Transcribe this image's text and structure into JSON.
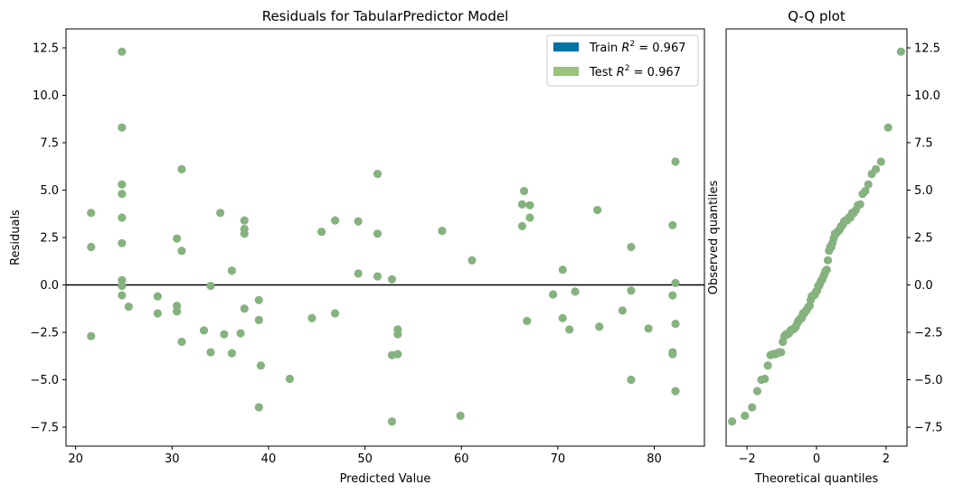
{
  "chart_data": [
    {
      "type": "scatter",
      "title": "Residuals for TabularPredictor Model",
      "xlabel": "Predicted Value",
      "ylabel": "Residuals",
      "xlim": [
        19,
        85.2
      ],
      "ylim": [
        -8.5,
        13.5
      ],
      "xticks": [
        20,
        30,
        40,
        50,
        60,
        70,
        80
      ],
      "yticks": [
        -7.5,
        -5.0,
        -2.5,
        0.0,
        2.5,
        5.0,
        7.5,
        10.0,
        12.5
      ],
      "grid": false,
      "hline": 0,
      "legend": {
        "placement": "top-right",
        "entries": [
          {
            "label_main": "Train ",
            "label_r": "R",
            "label_sup": "2",
            "label_tail": " = 0.967",
            "color": "#0072a6"
          },
          {
            "label_main": "Test ",
            "label_r": "R",
            "label_sup": "2",
            "label_tail": " = 0.967",
            "color": "#9bc27a"
          }
        ]
      },
      "series": [
        {
          "name": "Train",
          "color": "#0072a6",
          "points": []
        },
        {
          "name": "Test",
          "color": "#86b27f",
          "points": [
            [
              21.6,
              3.8
            ],
            [
              21.6,
              2.0
            ],
            [
              21.6,
              -2.7
            ],
            [
              24.8,
              12.3
            ],
            [
              24.8,
              8.3
            ],
            [
              24.8,
              5.3
            ],
            [
              24.8,
              4.8
            ],
            [
              24.8,
              3.55
            ],
            [
              24.8,
              2.2
            ],
            [
              24.8,
              0.25
            ],
            [
              24.8,
              -0.05
            ],
            [
              24.8,
              -0.55
            ],
            [
              25.5,
              -1.15
            ],
            [
              28.5,
              -0.6
            ],
            [
              28.5,
              -1.5
            ],
            [
              30.5,
              2.45
            ],
            [
              30.5,
              -1.1
            ],
            [
              30.5,
              -1.4
            ],
            [
              31.0,
              6.1
            ],
            [
              31.0,
              1.8
            ],
            [
              31.0,
              -3.0
            ],
            [
              33.3,
              -2.4
            ],
            [
              34.0,
              -0.05
            ],
            [
              34.0,
              -3.55
            ],
            [
              35.0,
              3.8
            ],
            [
              35.4,
              -2.6
            ],
            [
              36.2,
              0.75
            ],
            [
              36.2,
              -3.6
            ],
            [
              37.1,
              -2.55
            ],
            [
              37.5,
              3.4
            ],
            [
              37.5,
              2.95
            ],
            [
              37.5,
              2.7
            ],
            [
              37.5,
              -1.25
            ],
            [
              39.0,
              -0.8
            ],
            [
              39.0,
              -1.85
            ],
            [
              39.0,
              -6.45
            ],
            [
              39.2,
              -4.25
            ],
            [
              42.2,
              -4.95
            ],
            [
              44.5,
              -1.75
            ],
            [
              45.5,
              2.8
            ],
            [
              46.9,
              3.4
            ],
            [
              46.9,
              -1.5
            ],
            [
              49.3,
              3.35
            ],
            [
              49.3,
              0.6
            ],
            [
              51.3,
              5.85
            ],
            [
              51.3,
              2.7
            ],
            [
              51.3,
              0.45
            ],
            [
              52.8,
              0.3
            ],
            [
              52.8,
              -3.7
            ],
            [
              52.8,
              -7.2
            ],
            [
              53.4,
              -2.35
            ],
            [
              53.4,
              -2.6
            ],
            [
              53.4,
              -3.65
            ],
            [
              58.0,
              2.85
            ],
            [
              59.9,
              -6.9
            ],
            [
              61.1,
              1.3
            ],
            [
              66.3,
              4.25
            ],
            [
              66.3,
              3.1
            ],
            [
              66.5,
              4.95
            ],
            [
              67.1,
              4.2
            ],
            [
              67.1,
              3.55
            ],
            [
              66.8,
              -1.9
            ],
            [
              69.5,
              -0.5
            ],
            [
              70.5,
              0.8
            ],
            [
              70.5,
              -1.75
            ],
            [
              71.2,
              -2.35
            ],
            [
              71.8,
              -0.35
            ],
            [
              74.1,
              3.95
            ],
            [
              74.3,
              -2.2
            ],
            [
              76.7,
              -1.35
            ],
            [
              77.6,
              2.0
            ],
            [
              77.6,
              -0.3
            ],
            [
              77.6,
              -5.0
            ],
            [
              79.4,
              -2.3
            ],
            [
              81.9,
              3.15
            ],
            [
              81.9,
              -0.55
            ],
            [
              81.9,
              -3.55
            ],
            [
              81.9,
              -3.65
            ],
            [
              82.2,
              6.5
            ],
            [
              82.2,
              0.1
            ],
            [
              82.2,
              -2.05
            ],
            [
              82.2,
              -5.6
            ]
          ]
        }
      ]
    },
    {
      "type": "scatter",
      "title": "Q-Q plot",
      "xlabel": "Theoretical quantiles",
      "ylabel": "Observed quantiles",
      "xlim": [
        -2.6,
        2.6
      ],
      "ylim": [
        -8.5,
        13.5
      ],
      "xticks": [
        -2,
        0,
        2
      ],
      "yticks": [
        -7.5,
        -5.0,
        -2.5,
        0.0,
        2.5,
        5.0,
        7.5,
        10.0,
        12.5
      ],
      "grid": false,
      "color": "#86b27f"
    }
  ]
}
